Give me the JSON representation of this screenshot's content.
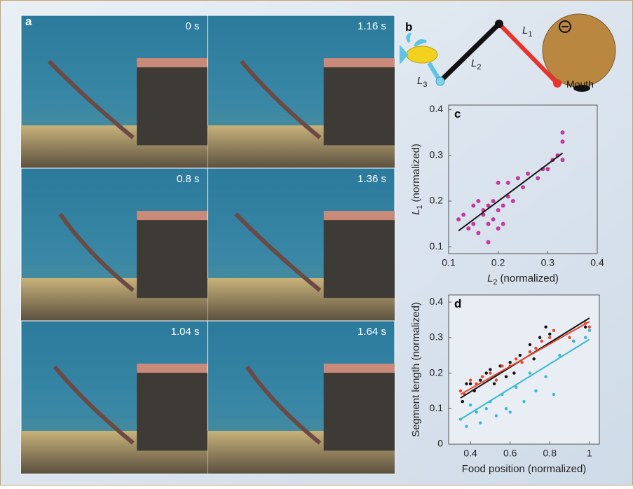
{
  "panel_a": {
    "letter": "a",
    "frames": [
      "0 s",
      "1.16 s",
      "0.8 s",
      "1.36 s",
      "1.04 s",
      "1.64 s"
    ]
  },
  "panel_b": {
    "letter": "b",
    "L1": {
      "symbol": "L",
      "subscript": "1"
    },
    "L2": {
      "symbol": "L",
      "subscript": "2"
    },
    "L3": {
      "symbol": "L",
      "subscript": "3"
    },
    "mouth": "Mouth"
  },
  "chart_data": [
    {
      "type": "scatter",
      "panel_label": "c",
      "xlabel": {
        "symbol": "L",
        "subscript": "2",
        "text": "(normalized)"
      },
      "ylabel": {
        "symbol": "L",
        "subscript": "1",
        "text": "(normalized)"
      },
      "xlim": [
        0.1,
        0.4
      ],
      "ylim": [
        0.085,
        0.41
      ],
      "xticks": [
        0.1,
        0.2,
        0.3,
        0.4
      ],
      "yticks": [
        0.1,
        0.2,
        0.3,
        0.4
      ],
      "series": [
        {
          "color": "#c23a9c",
          "x": [
            0.12,
            0.13,
            0.14,
            0.15,
            0.15,
            0.16,
            0.16,
            0.17,
            0.17,
            0.18,
            0.18,
            0.18,
            0.19,
            0.19,
            0.2,
            0.2,
            0.2,
            0.21,
            0.21,
            0.22,
            0.22,
            0.23,
            0.24,
            0.25,
            0.26,
            0.28,
            0.29,
            0.3,
            0.31,
            0.32,
            0.33,
            0.33,
            0.33
          ],
          "values": [
            0.16,
            0.17,
            0.14,
            0.19,
            0.15,
            0.2,
            0.13,
            0.17,
            0.18,
            0.19,
            0.15,
            0.11,
            0.2,
            0.16,
            0.24,
            0.18,
            0.14,
            0.19,
            0.15,
            0.21,
            0.24,
            0.2,
            0.25,
            0.23,
            0.26,
            0.25,
            0.27,
            0.27,
            0.29,
            0.3,
            0.35,
            0.33,
            0.29
          ]
        }
      ],
      "fits": [
        {
          "color": "#111111",
          "x": [
            0.12,
            0.33
          ],
          "y": [
            0.135,
            0.305
          ]
        }
      ]
    },
    {
      "type": "scatter",
      "panel_label": "d",
      "xlabel": {
        "text": "Food position (normalized)"
      },
      "ylabel": {
        "text": "Segment length (normalized)"
      },
      "xlim": [
        0.29,
        1.05
      ],
      "ylim": [
        0,
        0.42
      ],
      "xticks": [
        0.4,
        0.6,
        0.8,
        1
      ],
      "yticks": [
        0,
        0.1,
        0.2,
        0.3,
        0.4
      ],
      "series": [
        {
          "color": "#111111",
          "x": [
            0.36,
            0.38,
            0.4,
            0.42,
            0.45,
            0.48,
            0.5,
            0.52,
            0.55,
            0.58,
            0.6,
            0.62,
            0.65,
            0.7,
            0.72,
            0.75,
            0.78,
            0.8,
            0.92,
            0.98
          ],
          "values": [
            0.12,
            0.17,
            0.17,
            0.15,
            0.18,
            0.2,
            0.21,
            0.17,
            0.22,
            0.19,
            0.23,
            0.2,
            0.25,
            0.28,
            0.24,
            0.3,
            0.33,
            0.31,
            0.29,
            0.33
          ]
        },
        {
          "color": "#e8452c",
          "x": [
            0.35,
            0.37,
            0.4,
            0.43,
            0.46,
            0.5,
            0.53,
            0.56,
            0.6,
            0.63,
            0.66,
            0.7,
            0.73,
            0.76,
            0.8,
            0.82,
            0.9,
            0.98,
            1.0
          ],
          "values": [
            0.15,
            0.14,
            0.18,
            0.17,
            0.19,
            0.2,
            0.18,
            0.22,
            0.22,
            0.24,
            0.23,
            0.26,
            0.27,
            0.29,
            0.3,
            0.32,
            0.3,
            0.34,
            0.33
          ]
        },
        {
          "color": "#3ab8d0",
          "x": [
            0.35,
            0.38,
            0.4,
            0.43,
            0.45,
            0.48,
            0.5,
            0.53,
            0.56,
            0.58,
            0.6,
            0.63,
            0.67,
            0.7,
            0.73,
            0.78,
            0.82,
            0.85,
            0.92,
            0.98,
            1.0
          ],
          "values": [
            0.07,
            0.05,
            0.11,
            0.09,
            0.06,
            0.1,
            0.12,
            0.08,
            0.14,
            0.1,
            0.09,
            0.16,
            0.12,
            0.2,
            0.15,
            0.19,
            0.14,
            0.25,
            0.29,
            0.3,
            0.32
          ]
        }
      ],
      "fits": [
        {
          "color": "#111111",
          "x": [
            0.35,
            1
          ],
          "y": [
            0.13,
            0.355
          ]
        },
        {
          "color": "#e8452c",
          "x": [
            0.35,
            1
          ],
          "y": [
            0.14,
            0.345
          ]
        },
        {
          "color": "#3ab8d0",
          "x": [
            0.35,
            1
          ],
          "y": [
            0.07,
            0.295
          ]
        }
      ]
    }
  ]
}
